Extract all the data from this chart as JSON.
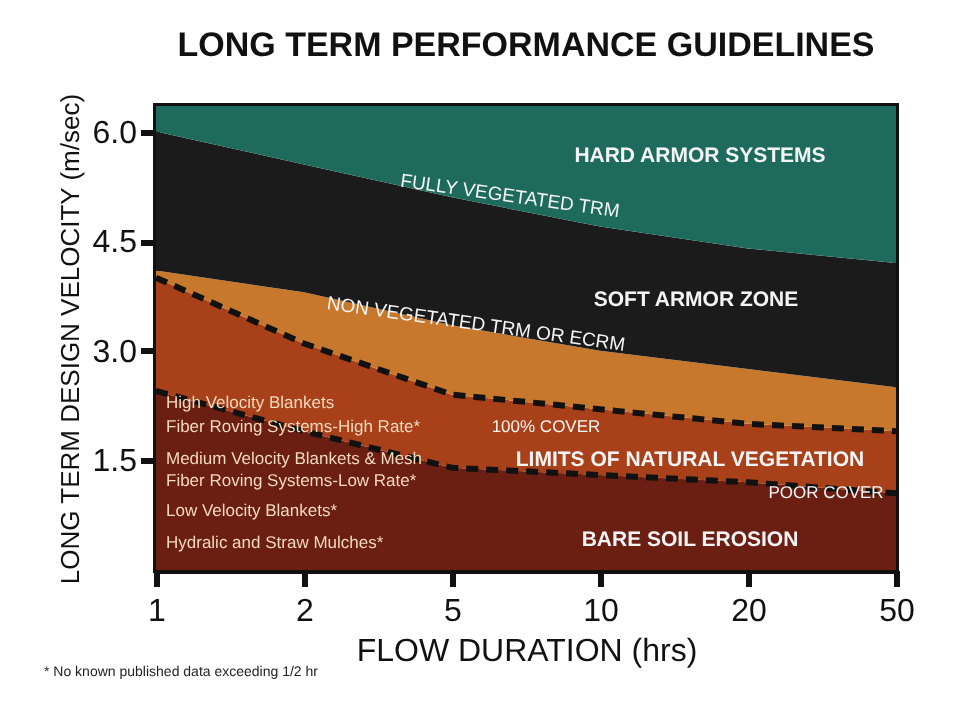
{
  "chart_data": {
    "type": "area",
    "stacked": true,
    "title": "LONG TERM PERFORMANCE GUIDELINES",
    "xlabel": "FLOW DURATION (hrs)",
    "ylabel": "LONG TERM DESIGN VELOCITY (m/sec)",
    "categories": [
      "1",
      "2",
      "5",
      "10",
      "20",
      "50"
    ],
    "ylim": [
      0,
      6.35
    ],
    "yticks": [
      {
        "value": 1.5,
        "label": "1.5"
      },
      {
        "value": 3,
        "label": "3.0"
      },
      {
        "value": 4.5,
        "label": "4.5"
      },
      {
        "value": 6,
        "label": "6.0"
      }
    ],
    "series": [
      {
        "color": "#6b1e12",
        "line_style": "dashed",
        "values": [
          2.45,
          1.9,
          1.4,
          1.3,
          1.2,
          1.05
        ]
      },
      {
        "color": "#a8401a",
        "line_style": "dashed",
        "values": [
          1.55,
          1.2,
          1.0,
          0.9,
          0.8,
          0.85
        ]
      },
      {
        "color": "#c8782c",
        "values": [
          0.1,
          0.7,
          0.95,
          0.8,
          0.75,
          0.6
        ]
      },
      {
        "color": "#1b1b1b",
        "values": [
          1.9,
          1.75,
          1.75,
          1.7,
          1.65,
          1.7
        ]
      },
      {
        "color": "#1e6b5d",
        "values": [
          0.35,
          0.8,
          1.25,
          1.65,
          1.95,
          2.15
        ]
      }
    ],
    "annotations": [
      "HARD ARMOR SYSTEMS",
      "FULLY VEGETATED TRM",
      "SOFT ARMOR ZONE",
      "NON VEGETATED TRM OR ECRM",
      "100% COVER",
      "LIMITS OF NATURAL VEGETATION",
      "POOR COVER",
      "BARE SOIL EROSION",
      "High Velocity Blankets",
      "Fiber Roving Systems-High Rate*",
      "Medium Velocity Blankets & Mesh",
      "Fiber Roving Systems-Low Rate*",
      "Low Velocity Blankets*",
      "Hydralic and Straw Mulches*",
      "* No known published data exceeding 1/2 hr"
    ]
  }
}
